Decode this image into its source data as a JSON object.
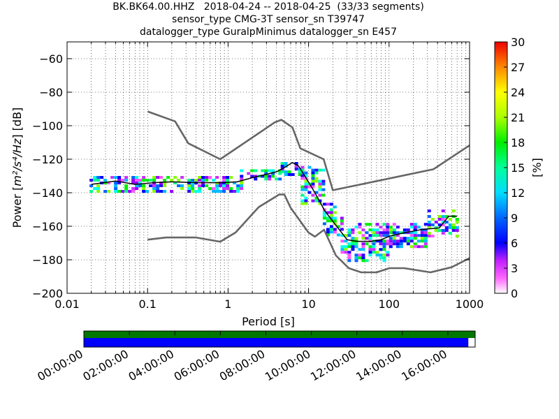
{
  "chart_data": {
    "type": "heatmap",
    "title_lines": [
      "BK.BK64.00.HHZ   2018-04-24 -- 2018-04-25  (33/33 segments)",
      "sensor_type CMG-3T sensor_sn T39747",
      "datalogger_type GuralpMinimus datalogger_sn E457"
    ],
    "xlabel": "Period [s]",
    "ylabel_prefix": "Power [",
    "ylabel_math": "m²/s⁴/Hz",
    "ylabel_suffix": "] [dB]",
    "x_scale": "log",
    "xlim": [
      0.01,
      1000
    ],
    "ylim": [
      -200,
      -50
    ],
    "x_ticks": [
      0.01,
      0.1,
      1,
      10,
      100,
      1000
    ],
    "x_tick_labels": [
      "0.01",
      "0.1",
      "1",
      "10",
      "100",
      "1000"
    ],
    "y_ticks": [
      -200,
      -180,
      -160,
      -140,
      -120,
      -100,
      -80,
      -60
    ],
    "y_tick_labels": [
      "−200",
      "−180",
      "−160",
      "−140",
      "−120",
      "−100",
      "−80",
      "−60"
    ],
    "grid": true,
    "colorbar": {
      "label": "[%]",
      "range": [
        0,
        30
      ],
      "ticks": [
        0,
        3,
        6,
        9,
        12,
        15,
        18,
        21,
        24,
        27,
        30
      ],
      "tick_labels": [
        "0",
        "3",
        "6",
        "9",
        "12",
        "15",
        "18",
        "21",
        "24",
        "27",
        "30"
      ]
    },
    "noise_models": [
      {
        "name": "NHNM",
        "points": [
          [
            0.1,
            -91.5
          ],
          [
            0.22,
            -97.4
          ],
          [
            0.32,
            -110.5
          ],
          [
            0.8,
            -120
          ],
          [
            3.8,
            -98
          ],
          [
            4.6,
            -96.5
          ],
          [
            6.3,
            -101
          ],
          [
            7.9,
            -113.5
          ],
          [
            15.4,
            -120
          ],
          [
            20,
            -138.5
          ],
          [
            354.8,
            -126
          ],
          [
            10000,
            -80
          ]
        ]
      },
      {
        "name": "NLNM",
        "points": [
          [
            0.1,
            -168
          ],
          [
            0.17,
            -166.7
          ],
          [
            0.4,
            -166.7
          ],
          [
            0.8,
            -169.2
          ],
          [
            1.24,
            -163.7
          ],
          [
            2.4,
            -148.6
          ],
          [
            4.3,
            -141.1
          ],
          [
            5,
            -141.1
          ],
          [
            6,
            -149
          ],
          [
            10,
            -163.8
          ],
          [
            12,
            -166.2
          ],
          [
            15.6,
            -162.1
          ],
          [
            21.9,
            -177.5
          ],
          [
            31.6,
            -185
          ],
          [
            45,
            -187.5
          ],
          [
            70,
            -187.5
          ],
          [
            101,
            -185
          ],
          [
            154,
            -185
          ],
          [
            328,
            -187.5
          ],
          [
            600,
            -184.4
          ],
          [
            1000,
            -179
          ]
        ]
      },
      {
        "name": "mode",
        "points": [
          [
            0.02,
            -135
          ],
          [
            0.04,
            -133
          ],
          [
            0.07,
            -135
          ],
          [
            0.12,
            -134
          ],
          [
            0.2,
            -133.5
          ],
          [
            0.4,
            -134
          ],
          [
            0.8,
            -134
          ],
          [
            1.3,
            -133.5
          ],
          [
            2,
            -131
          ],
          [
            3,
            -129
          ],
          [
            4,
            -127.5
          ],
          [
            5,
            -125
          ],
          [
            6.3,
            -122
          ],
          [
            7.5,
            -124
          ],
          [
            9,
            -130
          ],
          [
            11,
            -137
          ],
          [
            13,
            -143
          ],
          [
            16,
            -151
          ],
          [
            20,
            -157
          ],
          [
            25,
            -163
          ],
          [
            30,
            -168
          ],
          [
            40,
            -169
          ],
          [
            60,
            -169
          ],
          [
            80,
            -168
          ],
          [
            100,
            -166
          ],
          [
            150,
            -164
          ],
          [
            250,
            -162
          ],
          [
            420,
            -161
          ],
          [
            550,
            -154
          ],
          [
            700,
            -154
          ]
        ]
      }
    ],
    "density_bands": [
      {
        "x": [
          0.019,
          1.4
        ],
        "ylo": -139,
        "yhi": -130
      },
      {
        "x": [
          1.4,
          4.5
        ],
        "ylo": -132,
        "yhi": -126
      },
      {
        "x": [
          4.5,
          8
        ],
        "ylo": -129,
        "yhi": -120
      },
      {
        "x": [
          8,
          15
        ],
        "ylo": -146,
        "yhi": -124
      },
      {
        "x": [
          15,
          25
        ],
        "ylo": -165,
        "yhi": -146
      },
      {
        "x": [
          25,
          100
        ],
        "ylo": -181,
        "yhi": -158
      },
      {
        "x": [
          100,
          300
        ],
        "ylo": -172,
        "yhi": -158
      },
      {
        "x": [
          300,
          700
        ],
        "ylo": -166,
        "yhi": -150
      }
    ],
    "time_axis": {
      "tick_labels": [
        "00:00:00",
        "02:00:00",
        "04:00:00",
        "06:00:00",
        "08:00:00",
        "10:00:00",
        "12:00:00",
        "14:00:00",
        "16:00:00"
      ],
      "span_hours": [
        0,
        17.2
      ],
      "data_coverage_hours": [
        0,
        17.2
      ],
      "used_coverage_hours": [
        0,
        16.9
      ],
      "colors": {
        "data": "#007700",
        "used": "#0000ff"
      }
    }
  }
}
